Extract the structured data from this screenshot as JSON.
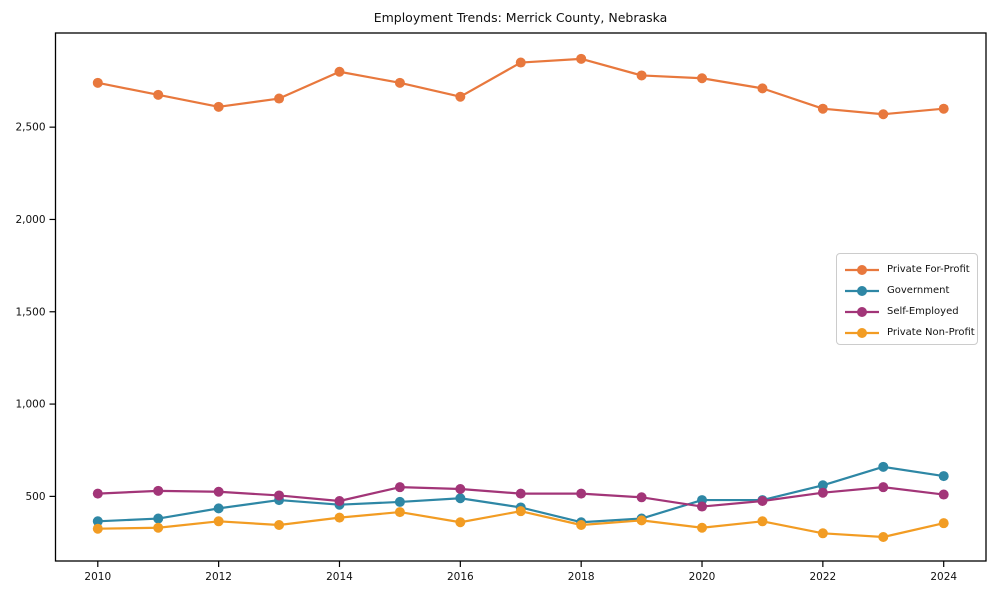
{
  "title": "Employment Trends: Merrick County, Nebraska",
  "chart_data": {
    "type": "line",
    "title": "Employment Trends: Merrick County, Nebraska",
    "xlabel": "",
    "ylabel": "",
    "grid": false,
    "legend_position": "center right",
    "xlim": [
      2009.3,
      2024.7
    ],
    "ylim": [
      150,
      3010
    ],
    "xticks": [
      2010,
      2012,
      2014,
      2016,
      2018,
      2020,
      2022,
      2024
    ],
    "ytick_values": [
      500,
      1000,
      1500,
      2000,
      2500
    ],
    "ytick_labels": [
      "500",
      "1,000",
      "1,500",
      "2,000",
      "2,500"
    ],
    "x": [
      2010,
      2011,
      2012,
      2013,
      2014,
      2015,
      2016,
      2017,
      2018,
      2019,
      2020,
      2021,
      2022,
      2023,
      2024
    ],
    "series": [
      {
        "name": "Private For-Profit",
        "color": "#e8783d",
        "values": [
          2740,
          2675,
          2610,
          2655,
          2800,
          2740,
          2665,
          2850,
          2870,
          2780,
          2765,
          2710,
          2600,
          2570,
          2600
        ]
      },
      {
        "name": "Government",
        "color": "#2e87a5",
        "values": [
          365,
          380,
          435,
          480,
          455,
          470,
          490,
          440,
          360,
          380,
          480,
          480,
          560,
          660,
          610
        ]
      },
      {
        "name": "Self-Employed",
        "color": "#a23578",
        "values": [
          515,
          530,
          525,
          505,
          475,
          550,
          540,
          515,
          515,
          495,
          445,
          475,
          520,
          550,
          510
        ]
      },
      {
        "name": "Private Non-Profit",
        "color": "#f29c23",
        "values": [
          325,
          330,
          365,
          345,
          385,
          415,
          360,
          420,
          345,
          370,
          330,
          365,
          300,
          280,
          355
        ]
      }
    ]
  }
}
